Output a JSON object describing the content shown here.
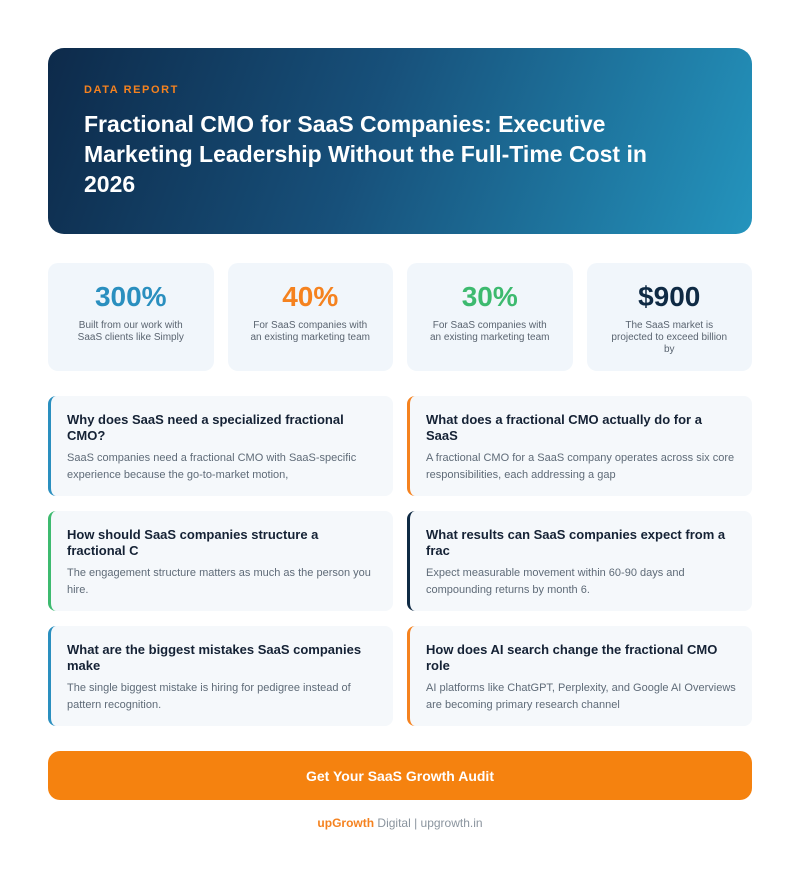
{
  "header": {
    "label": "DATA REPORT",
    "title": "Fractional CMO for SaaS Companies: Executive Marketing Leadership Without the Full-Time Cost in 2026"
  },
  "stats": [
    {
      "value": "300%",
      "label": "Built from our work with SaaS clients like Simply"
    },
    {
      "value": "40%",
      "label": "For SaaS companies with an existing marketing team"
    },
    {
      "value": "30%",
      "label": "For SaaS companies with an existing marketing team"
    },
    {
      "value": "$900",
      "label": "The SaaS market is projected to exceed billion by"
    }
  ],
  "cards": [
    {
      "question": "Why does SaaS need a specialized fractional CMO?",
      "answer": "SaaS companies need a fractional CMO with SaaS-specific experience because the go-to-market motion,"
    },
    {
      "question": "What does a fractional CMO actually do for a SaaS",
      "answer": "A fractional CMO for a SaaS company operates across six core responsibilities, each addressing a gap"
    },
    {
      "question": "How should SaaS companies structure a fractional C",
      "answer": "The engagement structure matters as much as the person you hire."
    },
    {
      "question": "What results can SaaS companies expect from a frac",
      "answer": "Expect measurable movement within 60-90 days and compounding returns by month 6."
    },
    {
      "question": "What are the biggest mistakes SaaS companies make",
      "answer": "The single biggest mistake is hiring for pedigree instead of pattern recognition."
    },
    {
      "question": "How does AI search change the fractional CMO role",
      "answer": "AI platforms like ChatGPT, Perplexity, and Google AI Overviews are becoming primary research channel"
    }
  ],
  "cta": {
    "label": "Get Your SaaS Growth Audit"
  },
  "footer": {
    "brand": "upGrowth",
    "text": "Digital | upgrowth.in"
  }
}
